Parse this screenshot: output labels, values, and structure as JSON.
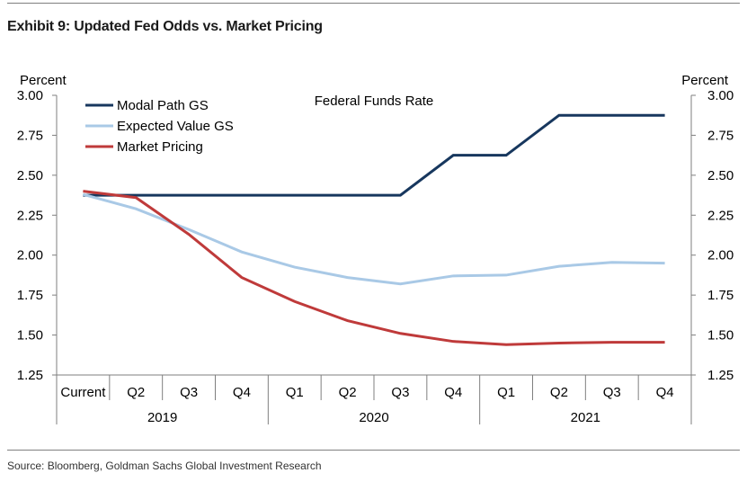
{
  "exhibit_title": "Exhibit 9: Updated Fed Odds vs. Market Pricing",
  "source": "Source: Bloomberg, Goldman Sachs Global Investment Research",
  "chart_data": {
    "type": "line",
    "title": "Federal Funds Rate",
    "ylabel_left": "Percent",
    "ylabel_right": "Percent",
    "ylim": [
      1.25,
      3.0
    ],
    "yticks": [
      "3.00",
      "2.75",
      "2.50",
      "2.25",
      "2.00",
      "1.75",
      "1.50",
      "1.25"
    ],
    "categories": [
      "Current",
      "Q2",
      "Q3",
      "Q4",
      "Q1",
      "Q2",
      "Q3",
      "Q4",
      "Q1",
      "Q2",
      "Q3",
      "Q4"
    ],
    "groups": [
      {
        "label": "2019",
        "span": [
          0,
          3
        ]
      },
      {
        "label": "2020",
        "span": [
          4,
          7
        ]
      },
      {
        "label": "2021",
        "span": [
          8,
          11
        ]
      }
    ],
    "series": [
      {
        "name": "Modal Path GS",
        "color": "#17375e",
        "step": true,
        "values": [
          2.375,
          2.375,
          2.375,
          2.375,
          2.375,
          2.375,
          2.375,
          2.625,
          2.625,
          2.875,
          2.875,
          2.875
        ]
      },
      {
        "name": "Expected Value GS",
        "color": "#a9c9e6",
        "step": false,
        "values": [
          2.38,
          2.29,
          2.16,
          2.02,
          1.925,
          1.86,
          1.82,
          1.87,
          1.875,
          1.93,
          1.955,
          1.95
        ]
      },
      {
        "name": "Market Pricing",
        "color": "#bf3a3a",
        "step": false,
        "values": [
          2.4,
          2.36,
          2.13,
          1.86,
          1.71,
          1.59,
          1.51,
          1.46,
          1.44,
          1.45,
          1.455,
          1.455
        ]
      }
    ],
    "legend_position": "top-left",
    "grid": false
  }
}
